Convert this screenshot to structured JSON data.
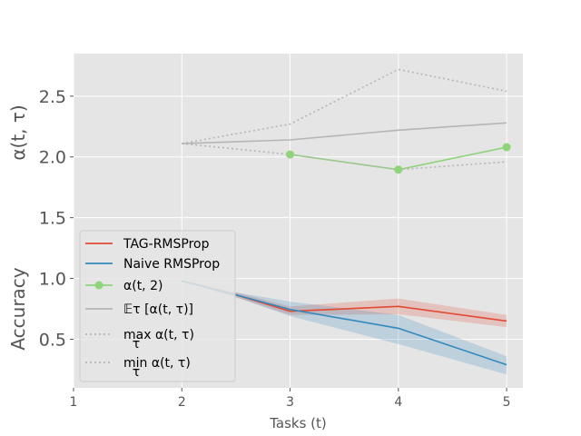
{
  "chart_data": {
    "type": "line",
    "title": "",
    "xlabel": "Tasks (t)",
    "ylabel_top": "α(t, τ)",
    "ylabel_bottom": "Accuracy",
    "xlim": [
      1,
      5.15
    ],
    "ylim": [
      0.1,
      2.85
    ],
    "x_ticks": [
      1,
      2,
      3,
      4,
      5
    ],
    "x_tick_labels": [
      "1",
      "2",
      "3",
      "4",
      "5"
    ],
    "y_ticks": [
      0.5,
      1.0,
      1.5,
      2.0,
      2.5
    ],
    "y_tick_labels": [
      "0.5",
      "1.0",
      "1.5",
      "2.0",
      "2.5"
    ],
    "grid": true,
    "legend_position": "lower-left",
    "series": [
      {
        "name": "TAG-RMSProp",
        "color": "#e24a33",
        "style": "solid",
        "x": [
          2,
          2.5,
          3,
          4,
          5
        ],
        "y": [
          0.98,
          0.865,
          0.73,
          0.77,
          0.65
        ],
        "band_upper": [
          0.98,
          0.885,
          0.77,
          0.835,
          0.7
        ],
        "band_lower": [
          0.98,
          0.845,
          0.7,
          0.705,
          0.6
        ]
      },
      {
        "name": "Naive RMSProp",
        "color": "#348abd",
        "style": "solid",
        "x": [
          2,
          2.5,
          3,
          4,
          5
        ],
        "y": [
          0.98,
          0.865,
          0.745,
          0.59,
          0.29
        ],
        "band_upper": [
          0.98,
          0.885,
          0.81,
          0.7,
          0.36
        ],
        "band_lower": [
          0.98,
          0.845,
          0.69,
          0.46,
          0.21
        ]
      },
      {
        "name": "α(t, 2)",
        "color": "#8fd37a",
        "style": "solid-marker",
        "x": [
          3,
          4,
          5
        ],
        "y": [
          2.02,
          1.895,
          2.08
        ]
      },
      {
        "name": "𝔼τ [α(t, τ)]",
        "color": "#b5b5b5",
        "style": "solid",
        "x": [
          2,
          3,
          4,
          5
        ],
        "y": [
          2.11,
          2.14,
          2.22,
          2.28
        ]
      },
      {
        "name": "max α(t, τ)",
        "color": "#b5b5b5",
        "style": "dotted",
        "x": [
          2,
          3,
          4,
          5
        ],
        "y": [
          2.11,
          2.27,
          2.72,
          2.54
        ]
      },
      {
        "name": "min α(t, τ)",
        "color": "#b5b5b5",
        "style": "dotted",
        "x": [
          2,
          3,
          4,
          5
        ],
        "y": [
          2.11,
          2.02,
          1.895,
          1.96
        ]
      }
    ]
  },
  "legend": {
    "items": [
      {
        "label": "TAG-RMSProp",
        "color": "#e24a33",
        "style": "solid"
      },
      {
        "label": "Naive RMSProp",
        "color": "#348abd",
        "style": "solid"
      },
      {
        "label": "α(t, 2)",
        "color": "#8fd37a",
        "style": "solid-marker"
      },
      {
        "label": "𝔼τ  [α(t, τ)]",
        "color": "#b5b5b5",
        "style": "solid"
      },
      {
        "label": "max  α(t, τ)",
        "sub": "τ",
        "color": "#b5b5b5",
        "style": "dotted"
      },
      {
        "label": "min  α(t, τ)",
        "sub": "τ",
        "color": "#b5b5b5",
        "style": "dotted"
      }
    ]
  },
  "colors": {
    "plot_bg": "#e5e5e5",
    "grid": "#ffffff",
    "legend_bg": "#e5e5e5",
    "legend_border": "#cccccc"
  }
}
